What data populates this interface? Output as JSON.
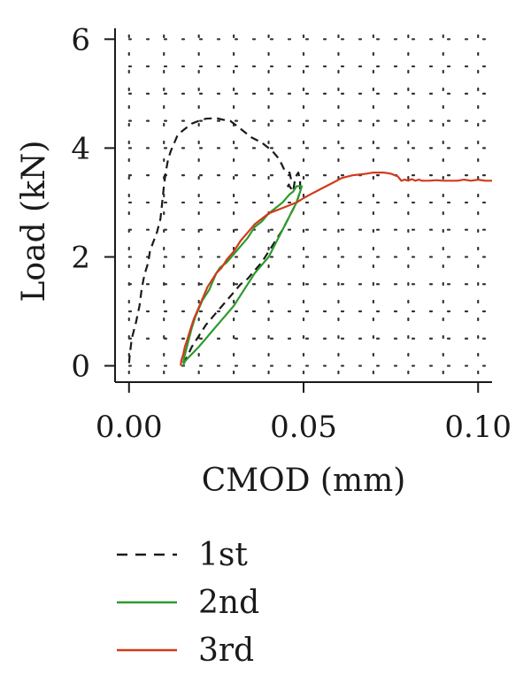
{
  "chart_data": {
    "type": "line",
    "xlabel": "CMOD (mm)",
    "ylabel": "Load (kN)",
    "xlim": [
      -0.004,
      0.104
    ],
    "ylim": [
      -0.3,
      6.2
    ],
    "xticks": [
      0.0,
      0.05,
      0.1
    ],
    "xtick_labels": [
      "0.00",
      "0.05",
      "0.10"
    ],
    "yticks": [
      0,
      2,
      4,
      6
    ],
    "ytick_labels": [
      "0",
      "2",
      "4",
      "6"
    ],
    "grid": "dotted",
    "legend_position": "bottom",
    "series": [
      {
        "name": "1st",
        "color": "#1a1a1a",
        "dash": "dashed",
        "points": [
          [
            0.0,
            0.05
          ],
          [
            0.0002,
            0.2
          ],
          [
            0.0008,
            0.5
          ],
          [
            0.0014,
            0.65
          ],
          [
            0.002,
            0.8
          ],
          [
            0.0025,
            0.95
          ],
          [
            0.003,
            1.1
          ],
          [
            0.0036,
            1.4
          ],
          [
            0.0042,
            1.6
          ],
          [
            0.0048,
            1.75
          ],
          [
            0.0055,
            1.9
          ],
          [
            0.006,
            2.1
          ],
          [
            0.0068,
            2.25
          ],
          [
            0.008,
            2.45
          ],
          [
            0.009,
            2.7
          ],
          [
            0.0095,
            3.0
          ],
          [
            0.01,
            3.3
          ],
          [
            0.0105,
            3.55
          ],
          [
            0.0112,
            3.8
          ],
          [
            0.012,
            3.95
          ],
          [
            0.013,
            4.1
          ],
          [
            0.014,
            4.25
          ],
          [
            0.016,
            4.35
          ],
          [
            0.018,
            4.45
          ],
          [
            0.02,
            4.5
          ],
          [
            0.022,
            4.54
          ],
          [
            0.025,
            4.55
          ],
          [
            0.027,
            4.52
          ],
          [
            0.029,
            4.5
          ],
          [
            0.032,
            4.35
          ],
          [
            0.035,
            4.2
          ],
          [
            0.038,
            4.1
          ],
          [
            0.041,
            3.95
          ],
          [
            0.043,
            3.8
          ],
          [
            0.0445,
            3.6
          ],
          [
            0.0455,
            3.55
          ],
          [
            0.046,
            3.55
          ],
          [
            0.0465,
            3.4
          ],
          [
            0.0455,
            3.3
          ],
          [
            0.046,
            3.3
          ],
          [
            0.047,
            3.2
          ],
          [
            0.0475,
            3.4
          ],
          [
            0.048,
            3.5
          ],
          [
            0.0485,
            3.55
          ],
          [
            0.049,
            3.4
          ],
          [
            0.049,
            3.2
          ],
          [
            0.048,
            3.0
          ],
          [
            0.046,
            2.75
          ],
          [
            0.044,
            2.5
          ],
          [
            0.042,
            2.3
          ],
          [
            0.04,
            2.1
          ],
          [
            0.038,
            1.9
          ],
          [
            0.036,
            1.75
          ],
          [
            0.034,
            1.6
          ],
          [
            0.032,
            1.5
          ],
          [
            0.03,
            1.35
          ],
          [
            0.028,
            1.2
          ],
          [
            0.026,
            1.05
          ],
          [
            0.024,
            0.9
          ],
          [
            0.022,
            0.75
          ],
          [
            0.02,
            0.55
          ],
          [
            0.018,
            0.35
          ],
          [
            0.0165,
            0.15
          ],
          [
            0.0155,
            0.05
          ]
        ]
      },
      {
        "name": "2nd",
        "color": "#2e9a2e",
        "dash": "solid",
        "points": [
          [
            0.0155,
            0.0
          ],
          [
            0.016,
            0.08
          ],
          [
            0.017,
            0.15
          ],
          [
            0.0185,
            0.25
          ],
          [
            0.02,
            0.35
          ],
          [
            0.022,
            0.5
          ],
          [
            0.024,
            0.65
          ],
          [
            0.026,
            0.8
          ],
          [
            0.028,
            0.95
          ],
          [
            0.03,
            1.1
          ],
          [
            0.032,
            1.3
          ],
          [
            0.034,
            1.5
          ],
          [
            0.036,
            1.7
          ],
          [
            0.038,
            1.85
          ],
          [
            0.04,
            2.0
          ],
          [
            0.042,
            2.25
          ],
          [
            0.044,
            2.5
          ],
          [
            0.046,
            2.75
          ],
          [
            0.048,
            3.0
          ],
          [
            0.049,
            3.2
          ],
          [
            0.0495,
            3.3
          ],
          [
            0.048,
            3.3
          ],
          [
            0.047,
            3.2
          ],
          [
            0.046,
            3.15
          ],
          [
            0.044,
            3.0
          ],
          [
            0.042,
            2.9
          ],
          [
            0.04,
            2.8
          ],
          [
            0.038,
            2.65
          ],
          [
            0.036,
            2.55
          ],
          [
            0.035,
            2.45
          ],
          [
            0.034,
            2.35
          ],
          [
            0.032,
            2.2
          ],
          [
            0.03,
            2.05
          ],
          [
            0.028,
            1.9
          ],
          [
            0.026,
            1.8
          ],
          [
            0.025,
            1.7
          ],
          [
            0.024,
            1.55
          ],
          [
            0.023,
            1.4
          ],
          [
            0.022,
            1.3
          ],
          [
            0.021,
            1.2
          ],
          [
            0.02,
            1.05
          ],
          [
            0.019,
            0.9
          ],
          [
            0.018,
            0.7
          ],
          [
            0.017,
            0.45
          ],
          [
            0.016,
            0.2
          ],
          [
            0.0155,
            0.05
          ]
        ]
      },
      {
        "name": "3rd",
        "color": "#d13a1c",
        "dash": "solid",
        "points": [
          [
            0.0148,
            0.0
          ],
          [
            0.015,
            0.1
          ],
          [
            0.0155,
            0.2
          ],
          [
            0.016,
            0.35
          ],
          [
            0.0168,
            0.5
          ],
          [
            0.0175,
            0.65
          ],
          [
            0.0185,
            0.85
          ],
          [
            0.0195,
            1.0
          ],
          [
            0.0205,
            1.15
          ],
          [
            0.0215,
            1.3
          ],
          [
            0.0225,
            1.45
          ],
          [
            0.0235,
            1.55
          ],
          [
            0.025,
            1.7
          ],
          [
            0.0265,
            1.8
          ],
          [
            0.028,
            1.95
          ],
          [
            0.03,
            2.1
          ],
          [
            0.032,
            2.3
          ],
          [
            0.034,
            2.45
          ],
          [
            0.036,
            2.6
          ],
          [
            0.038,
            2.7
          ],
          [
            0.04,
            2.8
          ],
          [
            0.042,
            2.85
          ],
          [
            0.044,
            2.9
          ],
          [
            0.046,
            2.95
          ],
          [
            0.048,
            3.0
          ],
          [
            0.05,
            3.08
          ],
          [
            0.052,
            3.15
          ],
          [
            0.055,
            3.25
          ],
          [
            0.058,
            3.35
          ],
          [
            0.061,
            3.45
          ],
          [
            0.064,
            3.5
          ],
          [
            0.067,
            3.52
          ],
          [
            0.07,
            3.55
          ],
          [
            0.073,
            3.55
          ],
          [
            0.075,
            3.53
          ],
          [
            0.077,
            3.48
          ],
          [
            0.078,
            3.4
          ],
          [
            0.079,
            3.42
          ],
          [
            0.08,
            3.4
          ],
          [
            0.081,
            3.43
          ],
          [
            0.082,
            3.4
          ],
          [
            0.083,
            3.42
          ],
          [
            0.084,
            3.4
          ],
          [
            0.086,
            3.4
          ],
          [
            0.088,
            3.41
          ],
          [
            0.09,
            3.4
          ],
          [
            0.092,
            3.4
          ],
          [
            0.094,
            3.4
          ],
          [
            0.096,
            3.42
          ],
          [
            0.098,
            3.4
          ],
          [
            0.1,
            3.42
          ],
          [
            0.102,
            3.4
          ],
          [
            0.104,
            3.4
          ]
        ]
      }
    ]
  }
}
